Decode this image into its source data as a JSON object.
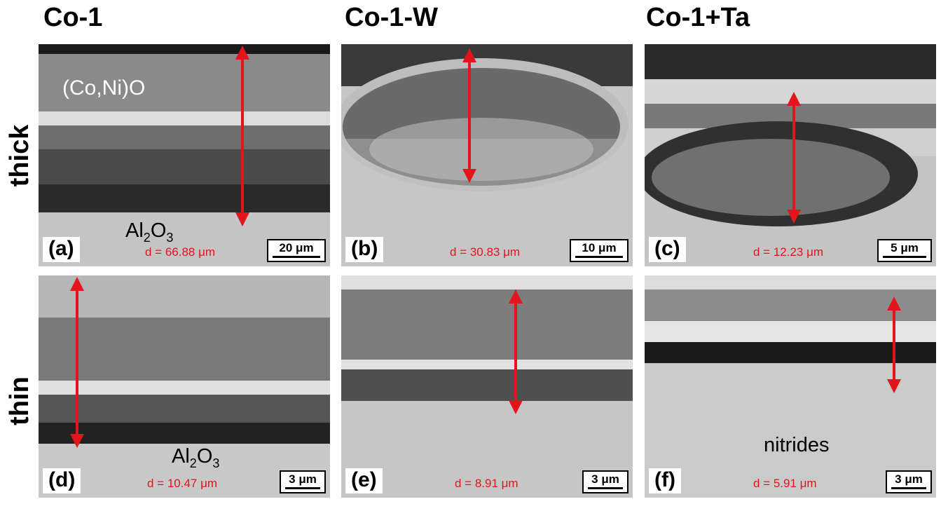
{
  "columns": [
    "Co-1",
    "Co-1-W",
    "Co-1+Ta"
  ],
  "rows": [
    "thick",
    "thin"
  ],
  "panels": [
    {
      "label": "(a)",
      "d": "d = 66.88 μm",
      "scale": "20 μm"
    },
    {
      "label": "(b)",
      "d": "d = 30.83 μm",
      "scale": "10 μm"
    },
    {
      "label": "(c)",
      "d": "d = 12.23 μm",
      "scale": "5 μm"
    },
    {
      "label": "(d)",
      "d": "d = 10.47 μm",
      "scale": "3 μm"
    },
    {
      "label": "(e)",
      "d": "d = 8.91 μm",
      "scale": "3 μm"
    },
    {
      "label": "(f)",
      "d": "d = 5.91 μm",
      "scale": "3 μm"
    }
  ],
  "annotations": {
    "oxide": "(Co,Ni)O",
    "alumina_main": "Al",
    "alumina_sub1": "2",
    "alumina_mid": "O",
    "alumina_sub2": "3",
    "nitrides": "nitrides"
  },
  "colors": {
    "arrow": "#e3141b",
    "measurement_text": "#e3141b"
  }
}
